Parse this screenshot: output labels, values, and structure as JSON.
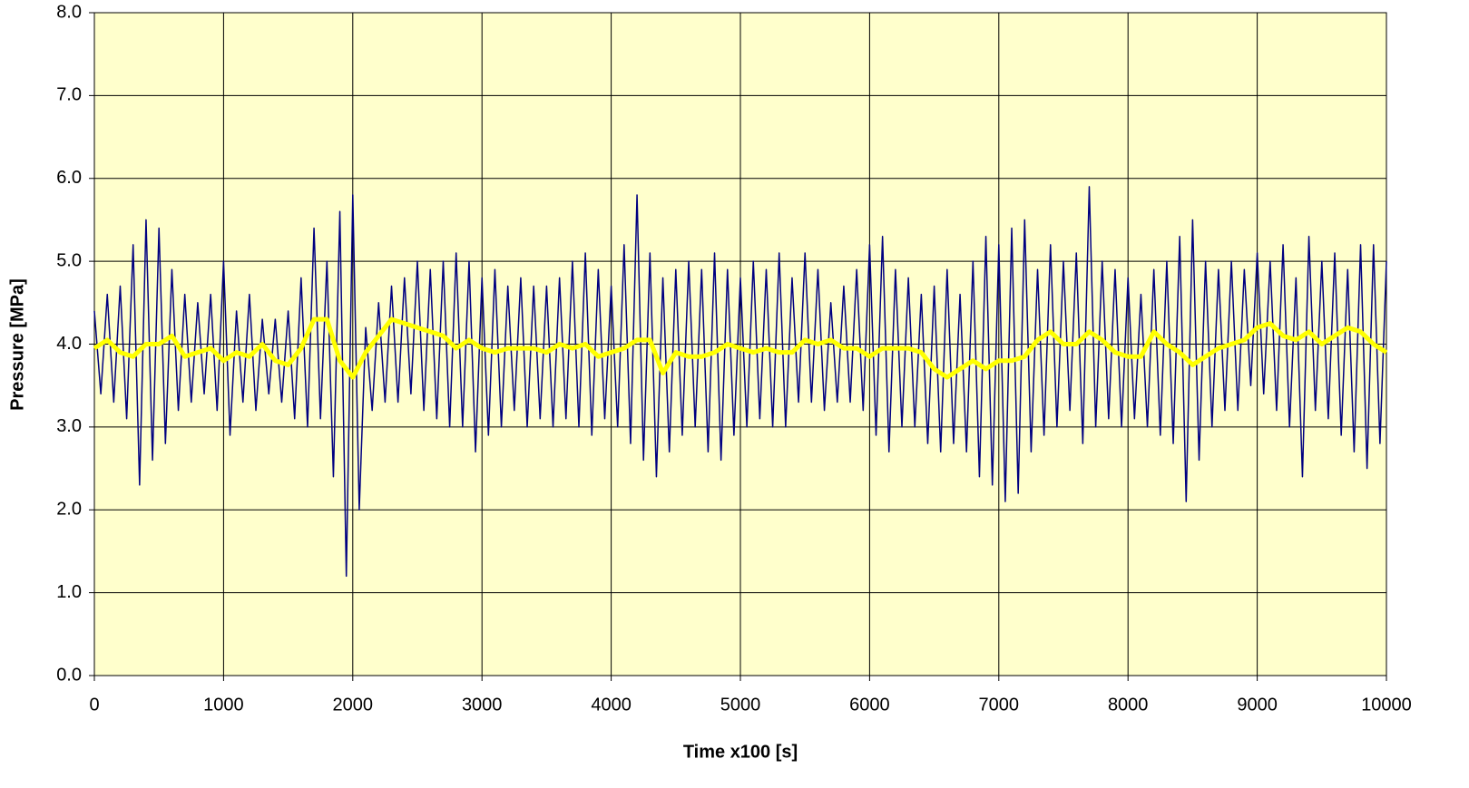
{
  "chart_data": {
    "type": "line",
    "xlabel": "Time x100 [s]",
    "ylabel": "Pressure [MPa]",
    "xlim": [
      0,
      10000
    ],
    "ylim": [
      0,
      8
    ],
    "xticks": [
      0,
      1000,
      2000,
      3000,
      4000,
      5000,
      6000,
      7000,
      8000,
      9000,
      10000
    ],
    "yticks": [
      {
        "value": 0,
        "label": "0.0"
      },
      {
        "value": 1,
        "label": "1.0"
      },
      {
        "value": 2,
        "label": "2.0"
      },
      {
        "value": 3,
        "label": "3.0"
      },
      {
        "value": 4,
        "label": "4.0"
      },
      {
        "value": 5,
        "label": "5.0"
      },
      {
        "value": 6,
        "label": "6.0"
      },
      {
        "value": 7,
        "label": "7.0"
      },
      {
        "value": 8,
        "label": "8.0"
      }
    ],
    "grid": true,
    "background": "#ffffcc",
    "series": [
      {
        "color": "#000080",
        "width": 1.5,
        "x": [
          0,
          50,
          100,
          150,
          200,
          250,
          300,
          350,
          400,
          450,
          500,
          550,
          600,
          650,
          700,
          750,
          800,
          850,
          900,
          950,
          1000,
          1050,
          1100,
          1150,
          1200,
          1250,
          1300,
          1350,
          1400,
          1450,
          1500,
          1550,
          1600,
          1650,
          1700,
          1750,
          1800,
          1850,
          1900,
          1950,
          2000,
          2050,
          2100,
          2150,
          2200,
          2250,
          2300,
          2350,
          2400,
          2450,
          2500,
          2550,
          2600,
          2650,
          2700,
          2750,
          2800,
          2850,
          2900,
          2950,
          3000,
          3050,
          3100,
          3150,
          3200,
          3250,
          3300,
          3350,
          3400,
          3450,
          3500,
          3550,
          3600,
          3650,
          3700,
          3750,
          3800,
          3850,
          3900,
          3950,
          4000,
          4050,
          4100,
          4150,
          4200,
          4250,
          4300,
          4350,
          4400,
          4450,
          4500,
          4550,
          4600,
          4650,
          4700,
          4750,
          4800,
          4850,
          4900,
          4950,
          5000,
          5050,
          5100,
          5150,
          5200,
          5250,
          5300,
          5350,
          5400,
          5450,
          5500,
          5550,
          5600,
          5650,
          5700,
          5750,
          5800,
          5850,
          5900,
          5950,
          6000,
          6050,
          6100,
          6150,
          6200,
          6250,
          6300,
          6350,
          6400,
          6450,
          6500,
          6550,
          6600,
          6650,
          6700,
          6750,
          6800,
          6850,
          6900,
          6950,
          7000,
          7050,
          7100,
          7150,
          7200,
          7250,
          7300,
          7350,
          7400,
          7450,
          7500,
          7550,
          7600,
          7650,
          7700,
          7750,
          7800,
          7850,
          7900,
          7950,
          8000,
          8050,
          8100,
          8150,
          8200,
          8250,
          8300,
          8350,
          8400,
          8450,
          8500,
          8550,
          8600,
          8650,
          8700,
          8750,
          8800,
          8850,
          8900,
          8950,
          9000,
          9050,
          9100,
          9150,
          9200,
          9250,
          9300,
          9350,
          9400,
          9450,
          9500,
          9550,
          9600,
          9650,
          9700,
          9750,
          9800,
          9850,
          9900,
          9950,
          10000
        ],
        "values": [
          4.4,
          3.4,
          4.6,
          3.3,
          4.7,
          3.1,
          5.2,
          2.3,
          5.5,
          2.6,
          5.4,
          2.8,
          4.9,
          3.2,
          4.6,
          3.3,
          4.5,
          3.4,
          4.6,
          3.2,
          5.0,
          2.9,
          4.4,
          3.3,
          4.6,
          3.2,
          4.3,
          3.4,
          4.3,
          3.3,
          4.4,
          3.1,
          4.8,
          3.0,
          5.4,
          3.1,
          5.0,
          2.4,
          5.6,
          1.2,
          5.8,
          2.0,
          4.2,
          3.2,
          4.5,
          3.3,
          4.7,
          3.3,
          4.8,
          3.4,
          5.0,
          3.2,
          4.9,
          3.1,
          5.0,
          3.0,
          5.1,
          3.0,
          5.0,
          2.7,
          4.8,
          2.9,
          4.9,
          3.0,
          4.7,
          3.2,
          4.8,
          3.0,
          4.7,
          3.1,
          4.7,
          3.0,
          4.8,
          3.1,
          5.0,
          3.0,
          5.1,
          2.9,
          4.9,
          3.1,
          4.7,
          3.0,
          5.2,
          2.8,
          5.8,
          2.6,
          5.1,
          2.4,
          4.8,
          2.7,
          4.9,
          2.9,
          5.0,
          3.0,
          4.9,
          2.7,
          5.1,
          2.6,
          4.9,
          2.9,
          4.8,
          3.0,
          5.0,
          3.1,
          4.9,
          3.0,
          5.1,
          3.0,
          4.8,
          3.3,
          5.1,
          3.3,
          4.9,
          3.2,
          4.5,
          3.3,
          4.7,
          3.3,
          4.9,
          3.2,
          5.2,
          2.9,
          5.3,
          2.7,
          4.9,
          3.0,
          4.8,
          3.0,
          4.6,
          2.8,
          4.7,
          2.7,
          4.9,
          2.8,
          4.6,
          2.7,
          5.0,
          2.4,
          5.3,
          2.3,
          5.2,
          2.1,
          5.4,
          2.2,
          5.5,
          2.7,
          4.9,
          2.9,
          5.2,
          3.0,
          5.0,
          3.2,
          5.1,
          2.8,
          5.9,
          3.0,
          5.0,
          3.1,
          4.9,
          3.0,
          4.8,
          3.1,
          4.6,
          3.0,
          4.9,
          2.9,
          5.0,
          2.8,
          5.3,
          2.1,
          5.5,
          2.6,
          5.0,
          3.0,
          4.9,
          3.2,
          5.0,
          3.2,
          4.9,
          3.5,
          5.1,
          3.4,
          5.0,
          3.2,
          5.2,
          3.0,
          4.8,
          2.4,
          5.3,
          3.2,
          5.0,
          3.1,
          5.1,
          2.9,
          4.9,
          2.7,
          5.2,
          2.5,
          5.2,
          2.8,
          5.0
        ]
      },
      {
        "color": "#ffff00",
        "width": 5,
        "x": [
          0,
          100,
          200,
          300,
          400,
          500,
          600,
          700,
          800,
          900,
          1000,
          1100,
          1200,
          1300,
          1400,
          1500,
          1600,
          1700,
          1800,
          1900,
          2000,
          2100,
          2200,
          2300,
          2400,
          2500,
          2600,
          2700,
          2800,
          2900,
          3000,
          3100,
          3200,
          3300,
          3400,
          3500,
          3600,
          3700,
          3800,
          3900,
          4000,
          4100,
          4200,
          4300,
          4400,
          4500,
          4600,
          4700,
          4800,
          4900,
          5000,
          5100,
          5200,
          5300,
          5400,
          5500,
          5600,
          5700,
          5800,
          5900,
          6000,
          6100,
          6200,
          6300,
          6400,
          6500,
          6600,
          6700,
          6800,
          6900,
          7000,
          7100,
          7200,
          7300,
          7400,
          7500,
          7600,
          7700,
          7800,
          7900,
          8000,
          8100,
          8200,
          8300,
          8400,
          8500,
          8600,
          8700,
          8800,
          8900,
          9000,
          9100,
          9200,
          9300,
          9400,
          9500,
          9600,
          9700,
          9800,
          9900,
          10000
        ],
        "values": [
          3.95,
          4.05,
          3.9,
          3.85,
          4.0,
          4.0,
          4.1,
          3.85,
          3.9,
          3.95,
          3.8,
          3.9,
          3.85,
          4.0,
          3.8,
          3.75,
          3.95,
          4.3,
          4.3,
          3.8,
          3.6,
          3.9,
          4.1,
          4.3,
          4.25,
          4.2,
          4.15,
          4.1,
          3.95,
          4.05,
          3.95,
          3.9,
          3.95,
          3.95,
          3.95,
          3.9,
          4.0,
          3.95,
          4.0,
          3.85,
          3.9,
          3.95,
          4.05,
          4.05,
          3.65,
          3.9,
          3.85,
          3.85,
          3.9,
          4.0,
          3.95,
          3.9,
          3.95,
          3.9,
          3.9,
          4.05,
          4.0,
          4.05,
          3.95,
          3.95,
          3.85,
          3.95,
          3.95,
          3.95,
          3.9,
          3.7,
          3.6,
          3.7,
          3.8,
          3.7,
          3.8,
          3.8,
          3.85,
          4.05,
          4.15,
          4.0,
          4.0,
          4.15,
          4.05,
          3.9,
          3.85,
          3.85,
          4.15,
          4.0,
          3.9,
          3.75,
          3.85,
          3.95,
          4.0,
          4.05,
          4.2,
          4.25,
          4.1,
          4.05,
          4.15,
          4.0,
          4.1,
          4.2,
          4.15,
          4.0,
          3.9
        ]
      }
    ]
  }
}
